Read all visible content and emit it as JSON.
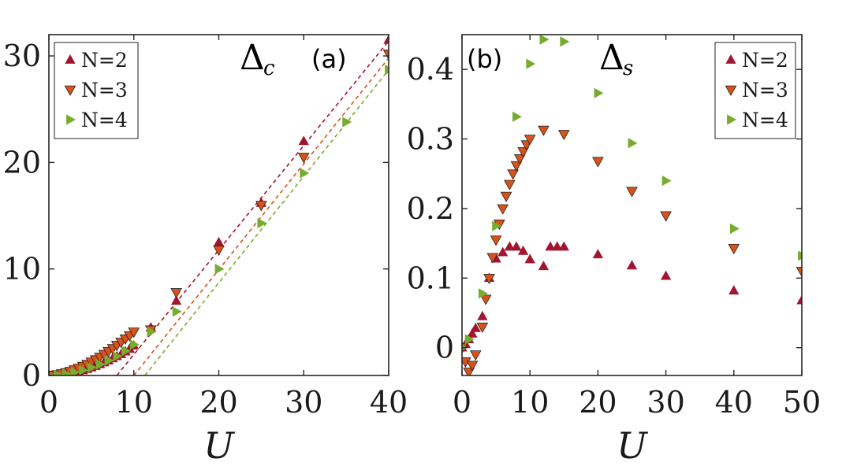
{
  "colors": {
    "N2": "#a2142f",
    "N3": "#d95319",
    "N4": "#77ac30",
    "axis": "#262626"
  },
  "chart_data": [
    {
      "panel": "a",
      "type": "scatter",
      "panel_label": "(a)",
      "title_symbol": "Δ",
      "title_subscript": "c",
      "xlabel": "U",
      "ylabel": "",
      "xlim": [
        0,
        40
      ],
      "ylim": [
        0,
        32
      ],
      "xticks": [
        0,
        10,
        20,
        30,
        40
      ],
      "yticks": [
        0,
        10,
        20,
        30
      ],
      "grid": false,
      "legend_position": "top-left",
      "series": [
        {
          "name": "N=2",
          "marker": "triangle-up",
          "color": "#a2142f",
          "x": [
            0,
            0.5,
            1,
            1.5,
            2,
            2.5,
            3,
            3.5,
            4,
            4.5,
            5,
            5.5,
            6,
            6.5,
            7,
            7.5,
            8,
            8.5,
            9,
            9.5,
            10,
            12,
            15,
            20,
            25,
            30,
            40
          ],
          "y": [
            0,
            0.02,
            0.05,
            0.09,
            0.14,
            0.2,
            0.28,
            0.37,
            0.48,
            0.6,
            0.74,
            0.89,
            1.05,
            1.22,
            1.4,
            1.6,
            1.8,
            2.0,
            2.25,
            2.5,
            2.8,
            4.5,
            7.0,
            12.5,
            16.2,
            22.0,
            31.5
          ]
        },
        {
          "name": "N=3",
          "marker": "triangle-down",
          "color": "#d95319",
          "x": [
            0,
            0.5,
            1,
            1.5,
            2,
            2.5,
            3,
            3.5,
            4,
            4.5,
            5,
            5.5,
            6,
            6.5,
            7,
            7.5,
            8,
            8.5,
            9,
            9.5,
            10,
            12,
            15,
            20,
            25,
            30,
            40
          ],
          "y": [
            0,
            0.05,
            0.1,
            0.18,
            0.28,
            0.4,
            0.55,
            0.7,
            0.88,
            1.07,
            1.28,
            1.5,
            1.74,
            2.0,
            2.27,
            2.55,
            2.85,
            3.15,
            3.45,
            3.75,
            4.1,
            4.3,
            7.8,
            11.8,
            16.0,
            20.5,
            30.2
          ]
        },
        {
          "name": "N=4",
          "marker": "triangle-right",
          "color": "#77ac30",
          "x": [
            0,
            1,
            2,
            3,
            4,
            5,
            6,
            7,
            8,
            9,
            10,
            12,
            15,
            20,
            25,
            30,
            35,
            40
          ],
          "y": [
            0,
            0.05,
            0.15,
            0.3,
            0.5,
            0.75,
            1.05,
            1.4,
            1.8,
            2.3,
            2.9,
            4.1,
            6.0,
            10.0,
            14.3,
            19.0,
            23.8,
            28.7
          ]
        }
      ],
      "fit_lines": [
        {
          "series": "N=2",
          "x": [
            8,
            40
          ],
          "y": [
            0,
            31.4
          ]
        },
        {
          "series": "N=3",
          "x": [
            10,
            40
          ],
          "y": [
            0,
            29.8
          ]
        },
        {
          "series": "N=4",
          "x": [
            11.3,
            40
          ],
          "y": [
            0,
            28.7
          ]
        }
      ]
    },
    {
      "panel": "b",
      "type": "scatter",
      "panel_label": "(b)",
      "title_symbol": "Δ",
      "title_subscript": "s",
      "xlabel": "U",
      "ylabel": "",
      "xlim": [
        0,
        50
      ],
      "ylim": [
        -0.04,
        0.45
      ],
      "xticks": [
        0,
        10,
        20,
        30,
        40,
        50
      ],
      "yticks": [
        0,
        0.1,
        0.2,
        0.3,
        0.4
      ],
      "ytick_labels": [
        "0",
        "0.1",
        "0.2",
        "0.3",
        "0.4"
      ],
      "grid": false,
      "legend_position": "top-right",
      "series": [
        {
          "name": "N=2",
          "marker": "triangle-up",
          "color": "#a2142f",
          "x": [
            0,
            0.5,
            1,
            1.5,
            2,
            3,
            4,
            5,
            6,
            7,
            8,
            9,
            10,
            12,
            13,
            14,
            15,
            20,
            25,
            30,
            40,
            50
          ],
          "y": [
            0.0,
            0.005,
            0.012,
            0.02,
            0.028,
            0.045,
            0.1,
            0.128,
            0.137,
            0.145,
            0.145,
            0.139,
            0.127,
            0.117,
            0.145,
            0.145,
            0.145,
            0.134,
            0.118,
            0.103,
            0.082,
            0.068
          ]
        },
        {
          "name": "N=3",
          "marker": "triangle-down",
          "color": "#d95319",
          "x": [
            0,
            0.5,
            1,
            1.5,
            2,
            3,
            3.5,
            4,
            4.5,
            5,
            5.5,
            6,
            6.5,
            7,
            7.5,
            8,
            8.5,
            9,
            9.5,
            10,
            12,
            15,
            20,
            25,
            30,
            40,
            50
          ],
          "y": [
            0.0,
            -0.02,
            -0.035,
            -0.025,
            -0.01,
            0.03,
            0.07,
            0.1,
            0.13,
            0.155,
            0.178,
            0.2,
            0.218,
            0.235,
            0.25,
            0.262,
            0.272,
            0.282,
            0.292,
            0.3,
            0.313,
            0.307,
            0.268,
            0.225,
            0.19,
            0.143,
            0.11
          ]
        },
        {
          "name": "N=4",
          "marker": "triangle-right",
          "color": "#77ac30",
          "x": [
            0,
            1,
            3,
            5,
            8,
            10,
            12,
            15,
            20,
            25,
            30,
            40,
            50
          ],
          "y": [
            0.0,
            0.012,
            0.078,
            0.175,
            0.332,
            0.408,
            0.443,
            0.44,
            0.366,
            0.294,
            0.24,
            0.171,
            0.132
          ]
        }
      ]
    }
  ]
}
